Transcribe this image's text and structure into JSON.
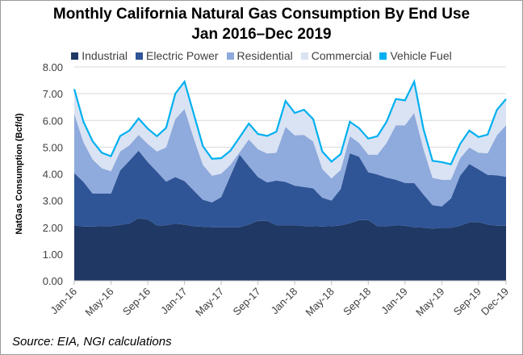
{
  "chart_data": {
    "type": "area",
    "stacked": true,
    "title": "Monthly California Natural Gas Consumption By End Use",
    "subtitle": "Jan 2016–Dec 2019",
    "ylabel": "NatGas Consumption (Bcf/d)",
    "xlabel": "",
    "ylim": [
      0,
      8
    ],
    "yticks": [
      "0.00",
      "1.00",
      "2.00",
      "3.00",
      "4.00",
      "5.00",
      "6.00",
      "7.00",
      "8.00"
    ],
    "grid": true,
    "legend_placement": "top",
    "categories": [
      "Jan-16",
      "Feb-16",
      "Mar-16",
      "Apr-16",
      "May-16",
      "Jun-16",
      "Jul-16",
      "Aug-16",
      "Sep-16",
      "Oct-16",
      "Nov-16",
      "Dec-16",
      "Jan-17",
      "Feb-17",
      "Mar-17",
      "Apr-17",
      "May-17",
      "Jun-17",
      "Jul-17",
      "Aug-17",
      "Sep-17",
      "Oct-17",
      "Nov-17",
      "Dec-17",
      "Jan-18",
      "Feb-18",
      "Mar-18",
      "Apr-18",
      "May-18",
      "Jun-18",
      "Jul-18",
      "Aug-18",
      "Sep-18",
      "Oct-18",
      "Nov-18",
      "Dec-18",
      "Jan-19",
      "Feb-19",
      "Mar-19",
      "Apr-19",
      "May-19",
      "Jun-19",
      "Jul-19",
      "Aug-19",
      "Sep-19",
      "Oct-19",
      "Nov-19",
      "Dec-19"
    ],
    "xtick_labels": [
      "Jan-16",
      "May-16",
      "Sep-16",
      "Jan-17",
      "May-17",
      "Sep-17",
      "Jan-18",
      "May-18",
      "Sep-18",
      "Jan-19",
      "May-19",
      "Sep-19",
      "Dec-19"
    ],
    "series": [
      {
        "name": "Industrial",
        "color": "#1F3864",
        "values": [
          2.07,
          2.03,
          2.03,
          2.04,
          2.04,
          2.09,
          2.14,
          2.34,
          2.29,
          2.07,
          2.08,
          2.13,
          2.1,
          2.04,
          2.02,
          2.0,
          2.0,
          2.0,
          2.0,
          2.1,
          2.24,
          2.24,
          2.08,
          2.08,
          2.08,
          2.05,
          2.04,
          2.03,
          2.04,
          2.07,
          2.15,
          2.27,
          2.27,
          2.04,
          2.04,
          2.07,
          2.06,
          2.0,
          1.99,
          1.95,
          1.98,
          1.98,
          2.06,
          2.19,
          2.2,
          2.1,
          2.06,
          2.06
        ]
      },
      {
        "name": "Electric Power",
        "color": "#2F5597",
        "values": [
          1.96,
          1.67,
          1.23,
          1.22,
          1.22,
          2.04,
          2.35,
          2.53,
          2.15,
          2.01,
          1.63,
          1.75,
          1.63,
          1.34,
          1.01,
          0.93,
          1.13,
          1.93,
          2.72,
          2.19,
          1.64,
          1.44,
          1.67,
          1.62,
          1.48,
          1.46,
          1.42,
          1.08,
          0.96,
          1.36,
          2.62,
          2.37,
          1.79,
          1.94,
          1.82,
          1.71,
          1.6,
          1.66,
          1.24,
          0.88,
          0.8,
          1.1,
          1.87,
          2.18,
          1.97,
          1.86,
          1.89,
          1.83
        ]
      },
      {
        "name": "Residential",
        "color": "#8FAADC",
        "values": [
          2.22,
          1.49,
          1.28,
          0.95,
          0.84,
          0.71,
          0.58,
          0.59,
          0.68,
          0.76,
          1.28,
          2.17,
          2.7,
          1.96,
          1.31,
          1.0,
          0.88,
          0.41,
          0.09,
          1.0,
          1.04,
          1.08,
          1.04,
          2.06,
          1.88,
          1.95,
          1.75,
          1.08,
          0.83,
          0.72,
          0.64,
          0.52,
          0.66,
          0.74,
          1.3,
          2.04,
          2.16,
          2.62,
          1.71,
          1.02,
          1.0,
          0.7,
          0.66,
          0.62,
          0.62,
          0.81,
          1.49,
          1.93
        ]
      },
      {
        "name": "Commercial",
        "color": "#DAE3F3",
        "values": [
          0.89,
          0.73,
          0.65,
          0.55,
          0.53,
          0.55,
          0.52,
          0.58,
          0.54,
          0.54,
          0.7,
          0.92,
          0.99,
          0.88,
          0.67,
          0.6,
          0.55,
          0.5,
          0.53,
          0.56,
          0.54,
          0.63,
          0.76,
          0.94,
          0.81,
          0.91,
          0.81,
          0.62,
          0.6,
          0.56,
          0.51,
          0.52,
          0.57,
          0.66,
          0.76,
          0.95,
          0.9,
          1.14,
          0.72,
          0.61,
          0.63,
          0.55,
          0.5,
          0.6,
          0.56,
          0.67,
          0.92,
          0.95
        ]
      },
      {
        "name": "Vehicle Fuel",
        "color": "#00B0F0",
        "values": [
          0.03,
          0.03,
          0.03,
          0.03,
          0.03,
          0.03,
          0.03,
          0.03,
          0.03,
          0.03,
          0.03,
          0.03,
          0.03,
          0.03,
          0.03,
          0.03,
          0.03,
          0.03,
          0.03,
          0.03,
          0.03,
          0.03,
          0.03,
          0.03,
          0.03,
          0.03,
          0.03,
          0.03,
          0.03,
          0.03,
          0.03,
          0.03,
          0.03,
          0.03,
          0.03,
          0.03,
          0.03,
          0.03,
          0.03,
          0.03,
          0.03,
          0.03,
          0.03,
          0.03,
          0.03,
          0.03,
          0.03,
          0.03
        ]
      }
    ],
    "source": "Source: EIA, NGI calculations"
  }
}
